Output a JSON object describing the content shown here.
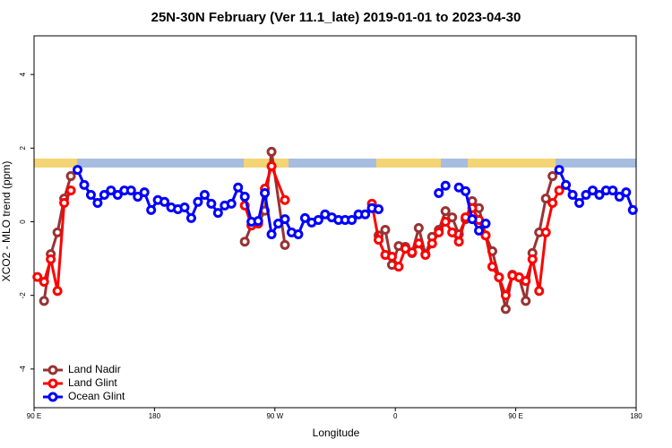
{
  "chart_data": {
    "type": "line",
    "title": "25N-30N February (Ver 11.1_late)   2019-01-01 to 2023-04-30",
    "x_label": "Longitude",
    "y_label": "XCO2 - MLO trend (ppm)",
    "xlim": [
      90,
      540
    ],
    "xticks": [
      {
        "value": 90,
        "label": "90 E"
      },
      180,
      {
        "value": 270,
        "label": "90 W"
      },
      {
        "value": 360,
        "label": "0"
      },
      {
        "value": 450,
        "label": "90 E"
      },
      {
        "value": 540,
        "label": "180"
      }
    ],
    "ylim": [
      -5.05,
      5.05
    ],
    "yticks": [
      -4,
      -2,
      0,
      2,
      4
    ],
    "legend": "bottom-left",
    "series": [
      {
        "name": "Land Nadir",
        "color": "#993333",
        "x": [
          97.5,
          102.5,
          107.5,
          112.5,
          117.5,
          122.5,
          247.5,
          252.5,
          257.5,
          262.5,
          267.5,
          277.5,
          282.5,
          347.5,
          352.5,
          357.5,
          362.5,
          367.5,
          372.5,
          377.5,
          382.5,
          387.5,
          392.5,
          397.5,
          402.5,
          407.5,
          412.5,
          417.5,
          422.5,
          427.5,
          432.5,
          437.5,
          442.5,
          447.5,
          452.5,
          457.5,
          462.5,
          467.5,
          472.5,
          477.5
        ],
        "values": [
          -2.15,
          -0.88,
          -0.29,
          0.63,
          1.24,
          null,
          -0.54,
          -0.1,
          -0.05,
          0.3,
          1.9,
          -0.63,
          null,
          -0.37,
          -0.22,
          -1.17,
          -0.66,
          -0.68,
          -0.85,
          -0.17,
          -0.88,
          -0.41,
          -0.22,
          0.29,
          0.12,
          -0.34,
          0.07,
          0.56,
          0.37,
          -0.37,
          -0.8,
          -1.51,
          -2.37,
          -1.44,
          -1.51,
          -2.15,
          -0.85,
          -0.29,
          0.63,
          1.24
        ]
      },
      {
        "name": "Land Glint",
        "color": "#ff0000",
        "x": [
          92.5,
          97.5,
          102.5,
          107.5,
          112.5,
          117.5,
          122.5,
          247.5,
          252.5,
          257.5,
          262.5,
          267.5,
          277.5,
          282.5,
          342.5,
          347.5,
          352.5,
          357.5,
          362.5,
          367.5,
          372.5,
          377.5,
          382.5,
          387.5,
          392.5,
          397.5,
          402.5,
          407.5,
          412.5,
          417.5,
          422.5,
          427.5,
          432.5,
          437.5,
          442.5,
          447.5,
          452.5,
          457.5,
          462.5,
          467.5,
          472.5,
          477.5,
          482.5
        ],
        "values": [
          -1.5,
          -1.63,
          -1.02,
          -1.88,
          0.51,
          0.85,
          null,
          0.44,
          -0.1,
          -0.05,
          0.9,
          1.51,
          0.59,
          null,
          0.49,
          -0.49,
          -0.9,
          -0.95,
          -1.22,
          -0.73,
          -0.83,
          -0.59,
          -0.9,
          -0.59,
          -0.29,
          0,
          -0.29,
          -0.54,
          0.12,
          0.37,
          0.05,
          -0.37,
          -1.22,
          -1.51,
          -2,
          -1.46,
          -1.51,
          -1.61,
          -1.02,
          -1.88,
          -0.29,
          0.51,
          0.85
        ]
      },
      {
        "name": "Ocean Glint",
        "color": "#0000ff",
        "x": [
          122.5,
          127.5,
          132.5,
          137.5,
          142.5,
          147.5,
          152.5,
          157.5,
          162.5,
          167.5,
          172.5,
          177.5,
          182.5,
          187.5,
          192.5,
          197.5,
          202.5,
          207.5,
          212.5,
          217.5,
          222.5,
          227.5,
          232.5,
          237.5,
          242.5,
          247.5,
          252.5,
          257.5,
          262.5,
          267.5,
          272.5,
          277.5,
          282.5,
          287.5,
          292.5,
          297.5,
          302.5,
          307.5,
          312.5,
          317.5,
          322.5,
          327.5,
          332.5,
          337.5,
          342.5,
          347.5,
          352.5,
          392.5,
          397.5,
          402.5,
          407.5,
          412.5,
          417.5,
          422.5,
          427.5,
          432.5,
          482.5,
          487.5,
          492.5,
          497.5,
          502.5,
          507.5,
          512.5,
          517.5,
          522.5,
          527.5,
          532.5,
          537.5
        ],
        "values": [
          1.41,
          1.0,
          0.73,
          0.51,
          0.73,
          0.85,
          0.73,
          0.85,
          0.85,
          0.68,
          0.8,
          0.32,
          0.59,
          0.54,
          0.39,
          0.34,
          0.39,
          0.1,
          0.54,
          0.73,
          0.49,
          0.24,
          0.44,
          0.49,
          0.93,
          0.68,
          0,
          0.02,
          0.78,
          -0.34,
          -0.05,
          0.07,
          -0.29,
          -0.34,
          0.1,
          -0.02,
          0.05,
          0.2,
          0.12,
          0.05,
          0.05,
          0.05,
          0.2,
          0.2,
          0.37,
          0.34,
          null,
          0.78,
          0.98,
          null,
          0.93,
          0.83,
          0.07,
          -0.24,
          -0.05,
          null,
          1.41,
          1.0,
          0.73,
          0.51,
          0.73,
          0.85,
          0.73,
          0.85,
          0.85,
          0.68,
          0.8,
          0.32
        ]
      }
    ]
  }
}
